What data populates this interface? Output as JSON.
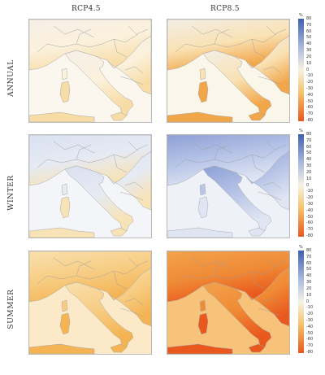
{
  "columns": [
    "RCP4.5",
    "RCP8.5"
  ],
  "rows": [
    "ANNUAL",
    "WINTER",
    "SUMMER"
  ],
  "colorbar": {
    "unit": "%",
    "ticks": [
      "80",
      "70",
      "60",
      "50",
      "40",
      "30",
      "20",
      "10",
      "0",
      "-10",
      "-20",
      "-30",
      "-40",
      "-50",
      "-60",
      "-70",
      "-80"
    ],
    "range": [
      -80,
      80
    ],
    "colors": {
      "wet_max": "#3f5fb0",
      "wet_mid": "#aab9dd",
      "neutral": "#f7f2e2",
      "dry_mid": "#f6c36a",
      "dry_max": "#e8571e"
    }
  },
  "panels": [
    {
      "row": "ANNUAL",
      "scenario": "RCP4.5",
      "land_color": "#fbf1dc",
      "south_color": "#f8dca6",
      "north_color": "#f6efe7",
      "sea_color": "#fbf7ee"
    },
    {
      "row": "ANNUAL",
      "scenario": "RCP8.5",
      "land_color": "#f9e2b4",
      "south_color": "#f2a64a",
      "north_color": "#f3eee6",
      "sea_color": "#fbf6ea"
    },
    {
      "row": "WINTER",
      "scenario": "RCP4.5",
      "land_color": "#e6eaf3",
      "south_color": "#f7e3b6",
      "north_color": "#d9e0f0",
      "sea_color": "#f4f5f8"
    },
    {
      "row": "WINTER",
      "scenario": "RCP8.5",
      "land_color": "#b9c6e8",
      "south_color": "#dfe5f2",
      "north_color": "#8da0d6",
      "sea_color": "#eef1f8"
    },
    {
      "row": "SUMMER",
      "scenario": "RCP4.5",
      "land_color": "#f7cc82",
      "south_color": "#f4b453",
      "north_color": "#f9e0ae",
      "sea_color": "#fbe9c8"
    },
    {
      "row": "SUMMER",
      "scenario": "RCP8.5",
      "land_color": "#f08a35",
      "south_color": "#e9581d",
      "north_color": "#f3a24c",
      "sea_color": "#f7c27a"
    }
  ]
}
